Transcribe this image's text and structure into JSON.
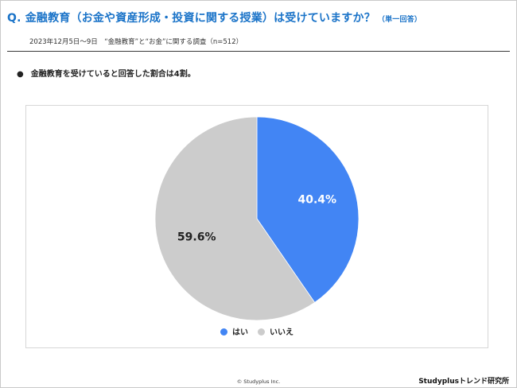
{
  "header": {
    "question": "Q. 金融教育（お金や資産形成・投資に関する授業）は受けていますか？",
    "question_note": "（単一回答）",
    "survey_info": "2023年12月5日～9日　“金融教育”と“お金”に関する調査（n=512）"
  },
  "summary": {
    "bullet": "●",
    "text": "金融教育を受けていると回答した割合は4割。"
  },
  "chart_data": {
    "type": "pie",
    "title": "",
    "slices": [
      {
        "label": "はい",
        "value": 40.4,
        "display": "40.4%",
        "color": "#4285f4",
        "label_color": "#ffffff"
      },
      {
        "label": "いいえ",
        "value": 59.6,
        "display": "59.6%",
        "color": "#cccccc",
        "label_color": "#222222"
      }
    ],
    "start": "12 o'clock",
    "direction": "clockwise",
    "legend_position": "bottom"
  },
  "footer": {
    "copyright": "© Studyplus Inc.",
    "brand": "Studyplusトレンド研究所"
  }
}
